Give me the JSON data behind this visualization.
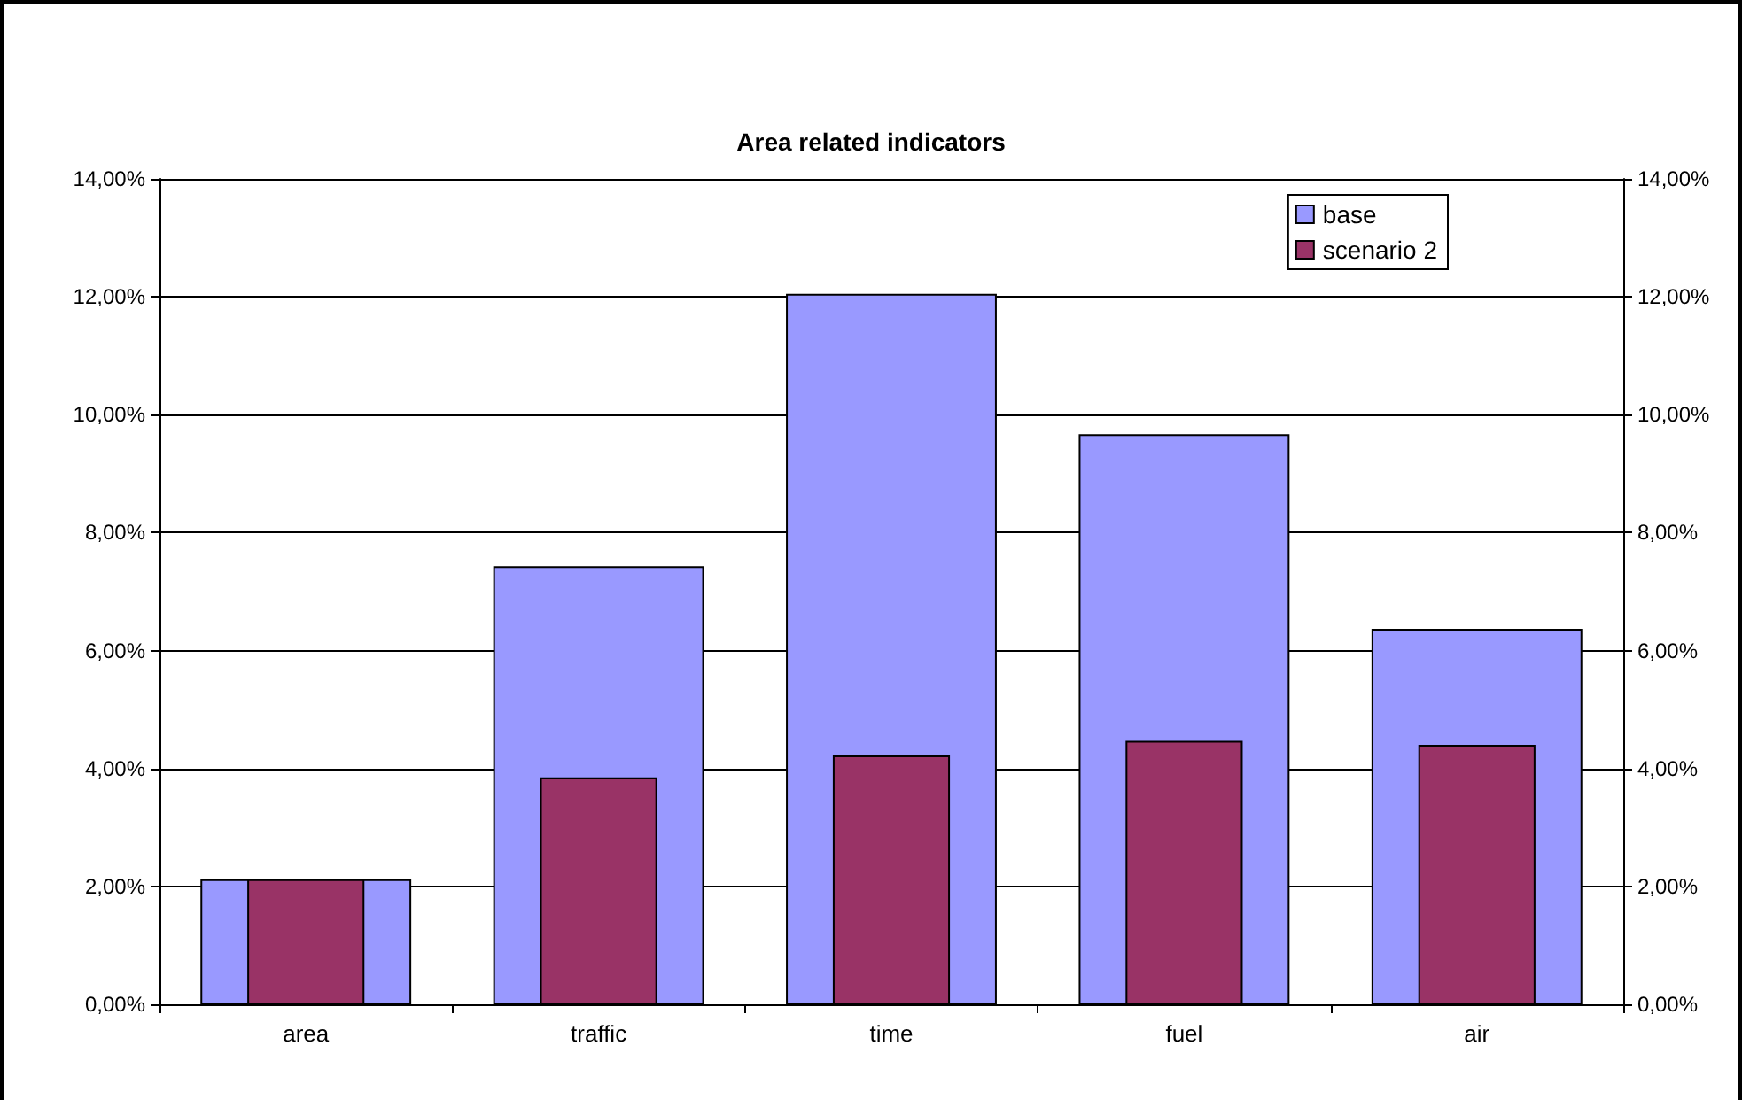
{
  "chart_data": {
    "type": "bar",
    "title": "Area related indicators",
    "categories": [
      "area",
      "traffic",
      "time",
      "fuel",
      "air"
    ],
    "series": [
      {
        "name": "base",
        "color": "#9999ff",
        "values": [
          2.12,
          7.43,
          12.05,
          9.67,
          6.37
        ]
      },
      {
        "name": "scenario 2",
        "color": "#993366",
        "values": [
          2.12,
          3.85,
          4.22,
          4.47,
          4.4
        ]
      }
    ],
    "ylim": [
      0,
      14
    ],
    "yticks": [
      {
        "value": 0,
        "label": "0,00%"
      },
      {
        "value": 2,
        "label": "2,00%"
      },
      {
        "value": 4,
        "label": "4,00%"
      },
      {
        "value": 6,
        "label": "6,00%"
      },
      {
        "value": 8,
        "label": "8,00%"
      },
      {
        "value": 10,
        "label": "10,00%"
      },
      {
        "value": 12,
        "label": "12,00%"
      },
      {
        "value": 14,
        "label": "14,00%"
      }
    ],
    "y2lim": [
      0,
      14
    ],
    "y2ticks": [
      {
        "value": 0,
        "label": "0,00%"
      },
      {
        "value": 2,
        "label": "2,00%"
      },
      {
        "value": 4,
        "label": "4,00%"
      },
      {
        "value": 6,
        "label": "6,00%"
      },
      {
        "value": 8,
        "label": "8,00%"
      },
      {
        "value": 10,
        "label": "10,00%"
      },
      {
        "value": 12,
        "label": "12,00%"
      },
      {
        "value": 14,
        "label": "14,00%"
      }
    ],
    "grid": "y",
    "legend": "top right"
  }
}
